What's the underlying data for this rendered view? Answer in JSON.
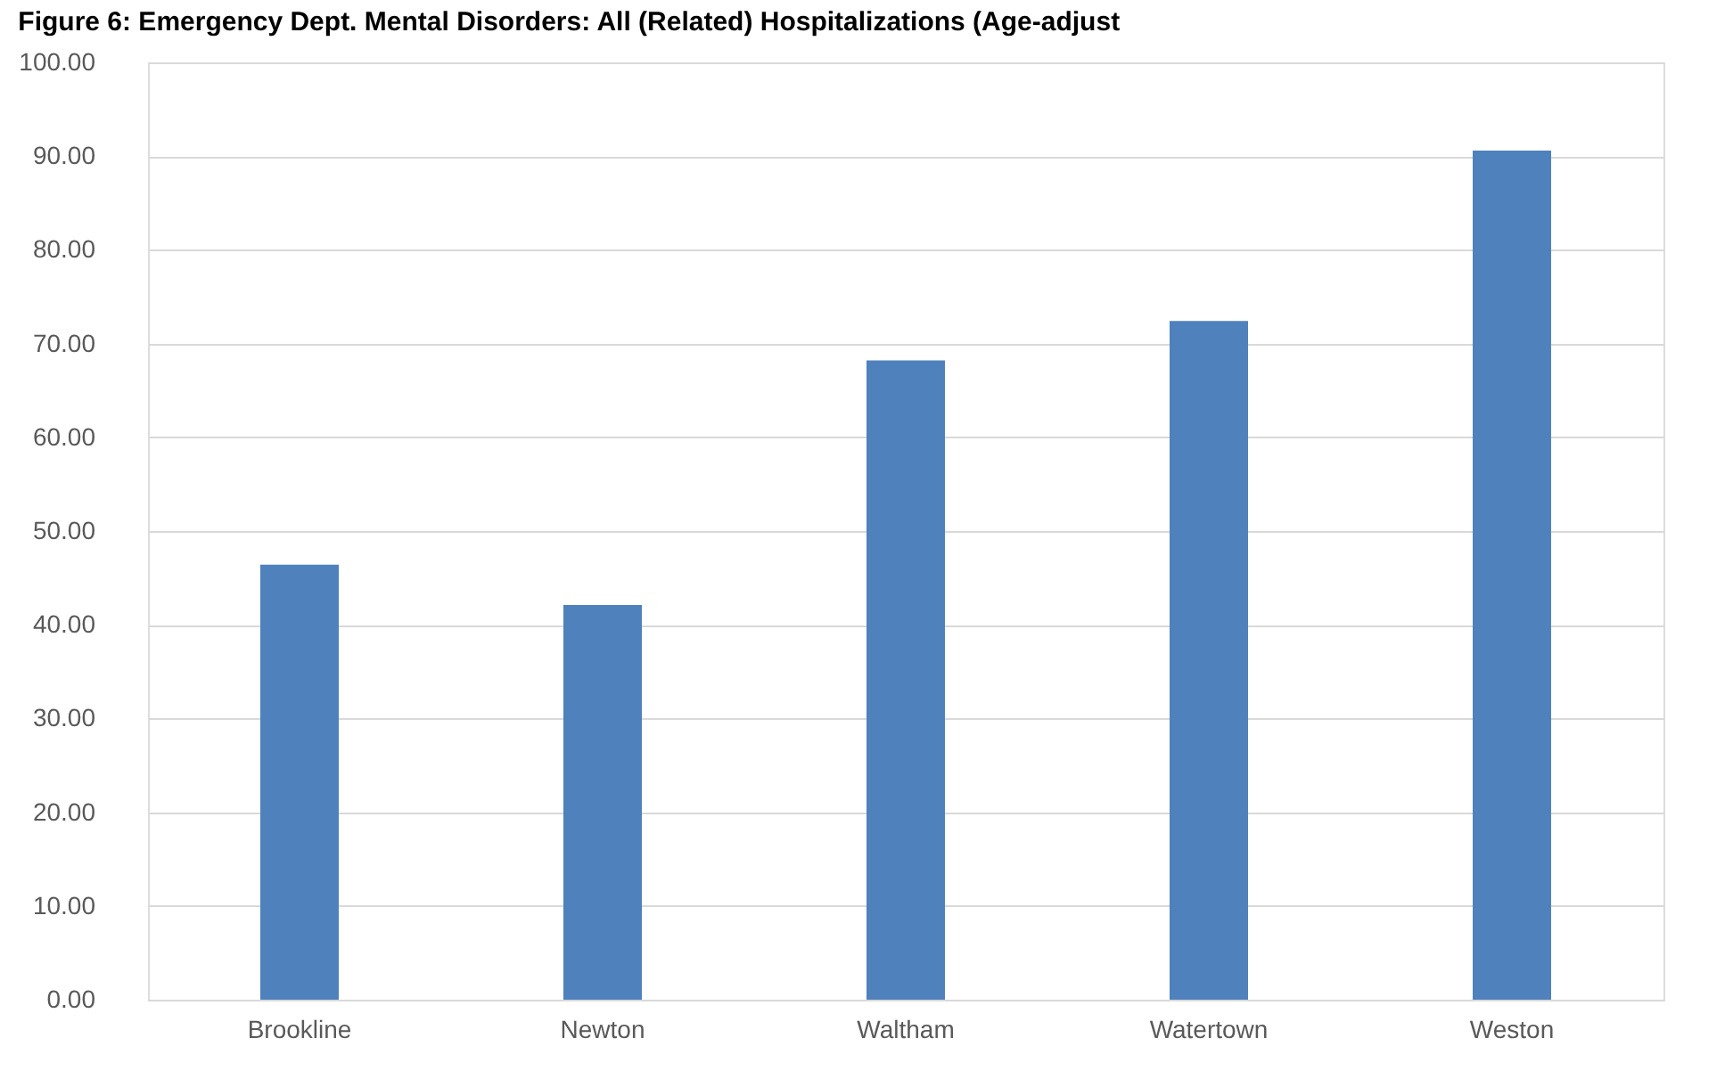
{
  "chart_data": {
    "type": "bar",
    "title": "Figure 6: Emergency Dept. Mental Disorders: All (Related) Hospitalizations (Age-adjust",
    "categories": [
      "Brookline",
      "Newton",
      "Waltham",
      "Watertown",
      "Weston"
    ],
    "values": [
      46.4,
      42.1,
      68.2,
      72.4,
      90.6
    ],
    "color": "#4f81bd",
    "ylim": [
      0,
      100
    ],
    "yticks": [
      {
        "value": 0,
        "label": "0.00"
      },
      {
        "value": 10,
        "label": "10.00"
      },
      {
        "value": 20,
        "label": "20.00"
      },
      {
        "value": 30,
        "label": "30.00"
      },
      {
        "value": 40,
        "label": "40.00"
      },
      {
        "value": 50,
        "label": "50.00"
      },
      {
        "value": 60,
        "label": "60.00"
      },
      {
        "value": 70,
        "label": "70.00"
      },
      {
        "value": 80,
        "label": "80.00"
      },
      {
        "value": 90,
        "label": "90.00"
      },
      {
        "value": 100,
        "label": "100.00"
      }
    ],
    "grid": true
  }
}
